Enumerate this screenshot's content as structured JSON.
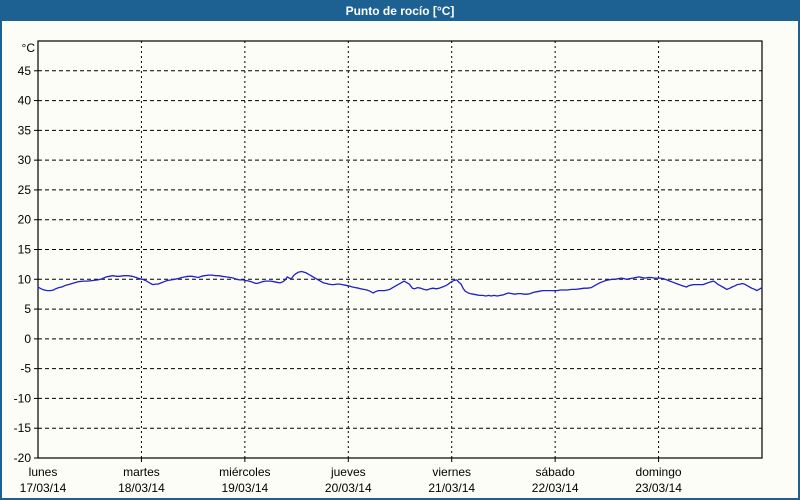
{
  "window": {
    "title": "Punto de rocío [°C]"
  },
  "colors": {
    "header_bg": "#1d6193",
    "window_border": "#1d6193",
    "background": "#fcfdf7",
    "plot_border": "#000000",
    "gridline": "#000000",
    "tick_text": "#000000",
    "title_text": "#ffffff",
    "series_blue": "#2020c8"
  },
  "chart_data": {
    "type": "line",
    "title": "Punto de rocío [°C]",
    "y_unit_label": "°C",
    "ylim": [
      -20,
      50
    ],
    "y_ticks": [
      45,
      40,
      35,
      30,
      25,
      20,
      15,
      10,
      5,
      0,
      -5,
      -10,
      -15,
      -20
    ],
    "xlim_days": [
      0,
      7
    ],
    "grid": "dashed",
    "legend": "none",
    "x_days": [
      {
        "name": "lunes",
        "date": "17/03/14"
      },
      {
        "name": "martes",
        "date": "18/03/14"
      },
      {
        "name": "miércoles",
        "date": "19/03/14"
      },
      {
        "name": "jueves",
        "date": "20/03/14"
      },
      {
        "name": "viernes",
        "date": "21/03/14"
      },
      {
        "name": "sábado",
        "date": "22/03/14"
      },
      {
        "name": "domingo",
        "date": "23/03/14"
      }
    ],
    "series": [
      {
        "name": "Punto de rocío",
        "color": "#2020c8",
        "points": [
          [
            0.0,
            8.7
          ],
          [
            0.03,
            8.4
          ],
          [
            0.06,
            8.2
          ],
          [
            0.09,
            8.1
          ],
          [
            0.12,
            8.1
          ],
          [
            0.15,
            8.2
          ],
          [
            0.17,
            8.4
          ],
          [
            0.2,
            8.6
          ],
          [
            0.23,
            8.7
          ],
          [
            0.27,
            9.0
          ],
          [
            0.31,
            9.2
          ],
          [
            0.35,
            9.4
          ],
          [
            0.39,
            9.6
          ],
          [
            0.44,
            9.7
          ],
          [
            0.48,
            9.7
          ],
          [
            0.53,
            9.8
          ],
          [
            0.58,
            9.9
          ],
          [
            0.62,
            10.1
          ],
          [
            0.66,
            10.4
          ],
          [
            0.69,
            10.5
          ],
          [
            0.72,
            10.6
          ],
          [
            0.76,
            10.5
          ],
          [
            0.79,
            10.5
          ],
          [
            0.83,
            10.6
          ],
          [
            0.87,
            10.6
          ],
          [
            0.91,
            10.5
          ],
          [
            0.95,
            10.3
          ],
          [
            0.98,
            10.1
          ],
          [
            1.01,
            10.0
          ],
          [
            1.04,
            9.8
          ],
          [
            1.06,
            9.6
          ],
          [
            1.09,
            9.3
          ],
          [
            1.11,
            9.1
          ],
          [
            1.14,
            9.2
          ],
          [
            1.16,
            9.2
          ],
          [
            1.19,
            9.4
          ],
          [
            1.22,
            9.6
          ],
          [
            1.25,
            9.8
          ],
          [
            1.29,
            9.9
          ],
          [
            1.32,
            10.0
          ],
          [
            1.35,
            10.1
          ],
          [
            1.39,
            10.3
          ],
          [
            1.42,
            10.4
          ],
          [
            1.45,
            10.5
          ],
          [
            1.49,
            10.5
          ],
          [
            1.52,
            10.4
          ],
          [
            1.55,
            10.3
          ],
          [
            1.58,
            10.5
          ],
          [
            1.61,
            10.6
          ],
          [
            1.65,
            10.7
          ],
          [
            1.68,
            10.7
          ],
          [
            1.72,
            10.6
          ],
          [
            1.75,
            10.6
          ],
          [
            1.78,
            10.5
          ],
          [
            1.82,
            10.4
          ],
          [
            1.86,
            10.3
          ],
          [
            1.89,
            10.2
          ],
          [
            1.92,
            10.0
          ],
          [
            1.95,
            9.9
          ],
          [
            1.98,
            9.9
          ],
          [
            2.01,
            9.8
          ],
          [
            2.04,
            9.7
          ],
          [
            2.06,
            9.6
          ],
          [
            2.09,
            9.4
          ],
          [
            2.11,
            9.3
          ],
          [
            2.14,
            9.4
          ],
          [
            2.17,
            9.6
          ],
          [
            2.2,
            9.7
          ],
          [
            2.22,
            9.7
          ],
          [
            2.25,
            9.7
          ],
          [
            2.28,
            9.6
          ],
          [
            2.31,
            9.5
          ],
          [
            2.34,
            9.4
          ],
          [
            2.37,
            9.6
          ],
          [
            2.39,
            9.9
          ],
          [
            2.41,
            10.4
          ],
          [
            2.43,
            10.2
          ],
          [
            2.45,
            10.1
          ],
          [
            2.47,
            10.6
          ],
          [
            2.49,
            10.9
          ],
          [
            2.52,
            11.2
          ],
          [
            2.55,
            11.3
          ],
          [
            2.57,
            11.2
          ],
          [
            2.59,
            11.1
          ],
          [
            2.61,
            10.9
          ],
          [
            2.64,
            10.6
          ],
          [
            2.66,
            10.4
          ],
          [
            2.69,
            10.1
          ],
          [
            2.71,
            9.9
          ],
          [
            2.74,
            9.6
          ],
          [
            2.76,
            9.4
          ],
          [
            2.79,
            9.3
          ],
          [
            2.81,
            9.2
          ],
          [
            2.84,
            9.1
          ],
          [
            2.86,
            9.1
          ],
          [
            2.89,
            9.2
          ],
          [
            2.92,
            9.2
          ],
          [
            2.94,
            9.1
          ],
          [
            2.97,
            9.0
          ],
          [
            3.0,
            8.9
          ],
          [
            3.04,
            8.7
          ],
          [
            3.07,
            8.6
          ],
          [
            3.1,
            8.5
          ],
          [
            3.12,
            8.4
          ],
          [
            3.15,
            8.3
          ],
          [
            3.18,
            8.2
          ],
          [
            3.21,
            8.0
          ],
          [
            3.24,
            7.7
          ],
          [
            3.26,
            7.9
          ],
          [
            3.29,
            8.1
          ],
          [
            3.32,
            8.1
          ],
          [
            3.35,
            8.1
          ],
          [
            3.38,
            8.2
          ],
          [
            3.4,
            8.3
          ],
          [
            3.43,
            8.6
          ],
          [
            3.46,
            8.9
          ],
          [
            3.49,
            9.2
          ],
          [
            3.52,
            9.5
          ],
          [
            3.54,
            9.7
          ],
          [
            3.56,
            9.5
          ],
          [
            3.59,
            9.2
          ],
          [
            3.62,
            8.5
          ],
          [
            3.64,
            8.4
          ],
          [
            3.67,
            8.6
          ],
          [
            3.7,
            8.5
          ],
          [
            3.73,
            8.3
          ],
          [
            3.76,
            8.2
          ],
          [
            3.79,
            8.4
          ],
          [
            3.82,
            8.5
          ],
          [
            3.85,
            8.4
          ],
          [
            3.88,
            8.5
          ],
          [
            3.91,
            8.7
          ],
          [
            3.94,
            8.9
          ],
          [
            3.96,
            9.1
          ],
          [
            3.99,
            9.5
          ],
          [
            4.02,
            9.8
          ],
          [
            4.05,
            9.9
          ],
          [
            4.07,
            9.5
          ],
          [
            4.09,
            9.2
          ],
          [
            4.11,
            8.5
          ],
          [
            4.13,
            8.0
          ],
          [
            4.16,
            7.7
          ],
          [
            4.18,
            7.6
          ],
          [
            4.21,
            7.5
          ],
          [
            4.24,
            7.4
          ],
          [
            4.27,
            7.3
          ],
          [
            4.3,
            7.3
          ],
          [
            4.33,
            7.2
          ],
          [
            4.36,
            7.3
          ],
          [
            4.38,
            7.2
          ],
          [
            4.41,
            7.3
          ],
          [
            4.44,
            7.2
          ],
          [
            4.47,
            7.3
          ],
          [
            4.5,
            7.4
          ],
          [
            4.53,
            7.6
          ],
          [
            4.55,
            7.7
          ],
          [
            4.58,
            7.6
          ],
          [
            4.61,
            7.5
          ],
          [
            4.64,
            7.6
          ],
          [
            4.67,
            7.6
          ],
          [
            4.7,
            7.5
          ],
          [
            4.73,
            7.5
          ],
          [
            4.76,
            7.6
          ],
          [
            4.79,
            7.8
          ],
          [
            4.82,
            7.9
          ],
          [
            4.85,
            8.0
          ],
          [
            4.88,
            8.1
          ],
          [
            4.91,
            8.1
          ],
          [
            4.95,
            8.1
          ],
          [
            4.98,
            8.1
          ],
          [
            5.02,
            8.1
          ],
          [
            5.05,
            8.2
          ],
          [
            5.09,
            8.2
          ],
          [
            5.12,
            8.2
          ],
          [
            5.16,
            8.3
          ],
          [
            5.2,
            8.3
          ],
          [
            5.24,
            8.4
          ],
          [
            5.28,
            8.5
          ],
          [
            5.31,
            8.5
          ],
          [
            5.35,
            8.6
          ],
          [
            5.38,
            8.9
          ],
          [
            5.4,
            9.1
          ],
          [
            5.43,
            9.4
          ],
          [
            5.46,
            9.6
          ],
          [
            5.49,
            9.8
          ],
          [
            5.52,
            9.9
          ],
          [
            5.55,
            10.0
          ],
          [
            5.58,
            10.0
          ],
          [
            5.61,
            10.1
          ],
          [
            5.64,
            10.2
          ],
          [
            5.67,
            10.1
          ],
          [
            5.69,
            10.0
          ],
          [
            5.72,
            10.1
          ],
          [
            5.75,
            10.2
          ],
          [
            5.78,
            10.3
          ],
          [
            5.81,
            10.4
          ],
          [
            5.84,
            10.3
          ],
          [
            5.87,
            10.2
          ],
          [
            5.9,
            10.3
          ],
          [
            5.93,
            10.3
          ],
          [
            5.96,
            10.2
          ],
          [
            5.99,
            10.2
          ],
          [
            6.02,
            10.2
          ],
          [
            6.05,
            10.1
          ],
          [
            6.08,
            9.9
          ],
          [
            6.11,
            9.7
          ],
          [
            6.14,
            9.5
          ],
          [
            6.17,
            9.3
          ],
          [
            6.2,
            9.1
          ],
          [
            6.23,
            8.9
          ],
          [
            6.25,
            8.8
          ],
          [
            6.27,
            8.7
          ],
          [
            6.29,
            8.9
          ],
          [
            6.31,
            9.0
          ],
          [
            6.34,
            9.1
          ],
          [
            6.37,
            9.1
          ],
          [
            6.4,
            9.1
          ],
          [
            6.43,
            9.1
          ],
          [
            6.46,
            9.3
          ],
          [
            6.49,
            9.5
          ],
          [
            6.51,
            9.6
          ],
          [
            6.53,
            9.7
          ],
          [
            6.55,
            9.5
          ],
          [
            6.57,
            9.2
          ],
          [
            6.6,
            8.9
          ],
          [
            6.62,
            8.7
          ],
          [
            6.64,
            8.5
          ],
          [
            6.66,
            8.3
          ],
          [
            6.69,
            8.5
          ],
          [
            6.71,
            8.7
          ],
          [
            6.74,
            8.9
          ],
          [
            6.76,
            9.1
          ],
          [
            6.79,
            9.2
          ],
          [
            6.81,
            9.3
          ],
          [
            6.83,
            9.2
          ],
          [
            6.86,
            8.9
          ],
          [
            6.88,
            8.7
          ],
          [
            6.9,
            8.5
          ],
          [
            6.93,
            8.3
          ],
          [
            6.95,
            8.1
          ],
          [
            6.97,
            8.3
          ],
          [
            7.0,
            8.6
          ]
        ]
      }
    ]
  }
}
